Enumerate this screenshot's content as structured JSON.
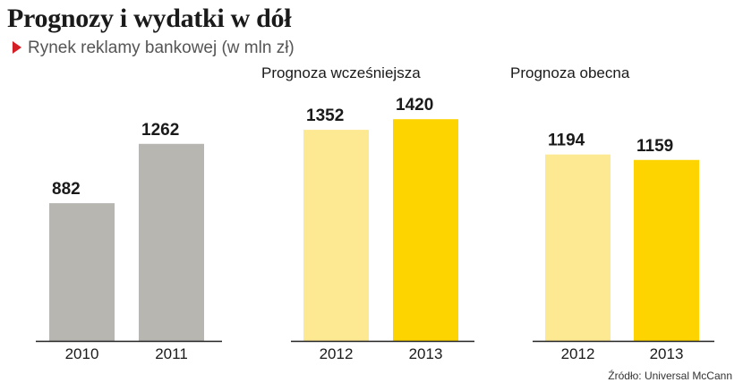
{
  "title": "Prognozy i wydatki w dół",
  "subtitle": "Rynek reklamy bankowej (w mln zł)",
  "source": "Źródło:  Universal McCann",
  "chart_data": [
    {
      "type": "bar",
      "title": "",
      "categories": [
        "2010",
        "2011"
      ],
      "values": [
        882,
        1262
      ],
      "colors": [
        "#b7b6b1",
        "#b7b6b1"
      ]
    },
    {
      "type": "bar",
      "title": "Prognoza wcześniejsza",
      "categories": [
        "2012",
        "2013"
      ],
      "values": [
        1352,
        1420
      ],
      "colors": [
        "#fde992",
        "#fdd400"
      ]
    },
    {
      "type": "bar",
      "title": "Prognoza obecna",
      "categories": [
        "2012",
        "2013"
      ],
      "values": [
        1194,
        1159
      ],
      "colors": [
        "#fde992",
        "#fdd400"
      ]
    }
  ]
}
